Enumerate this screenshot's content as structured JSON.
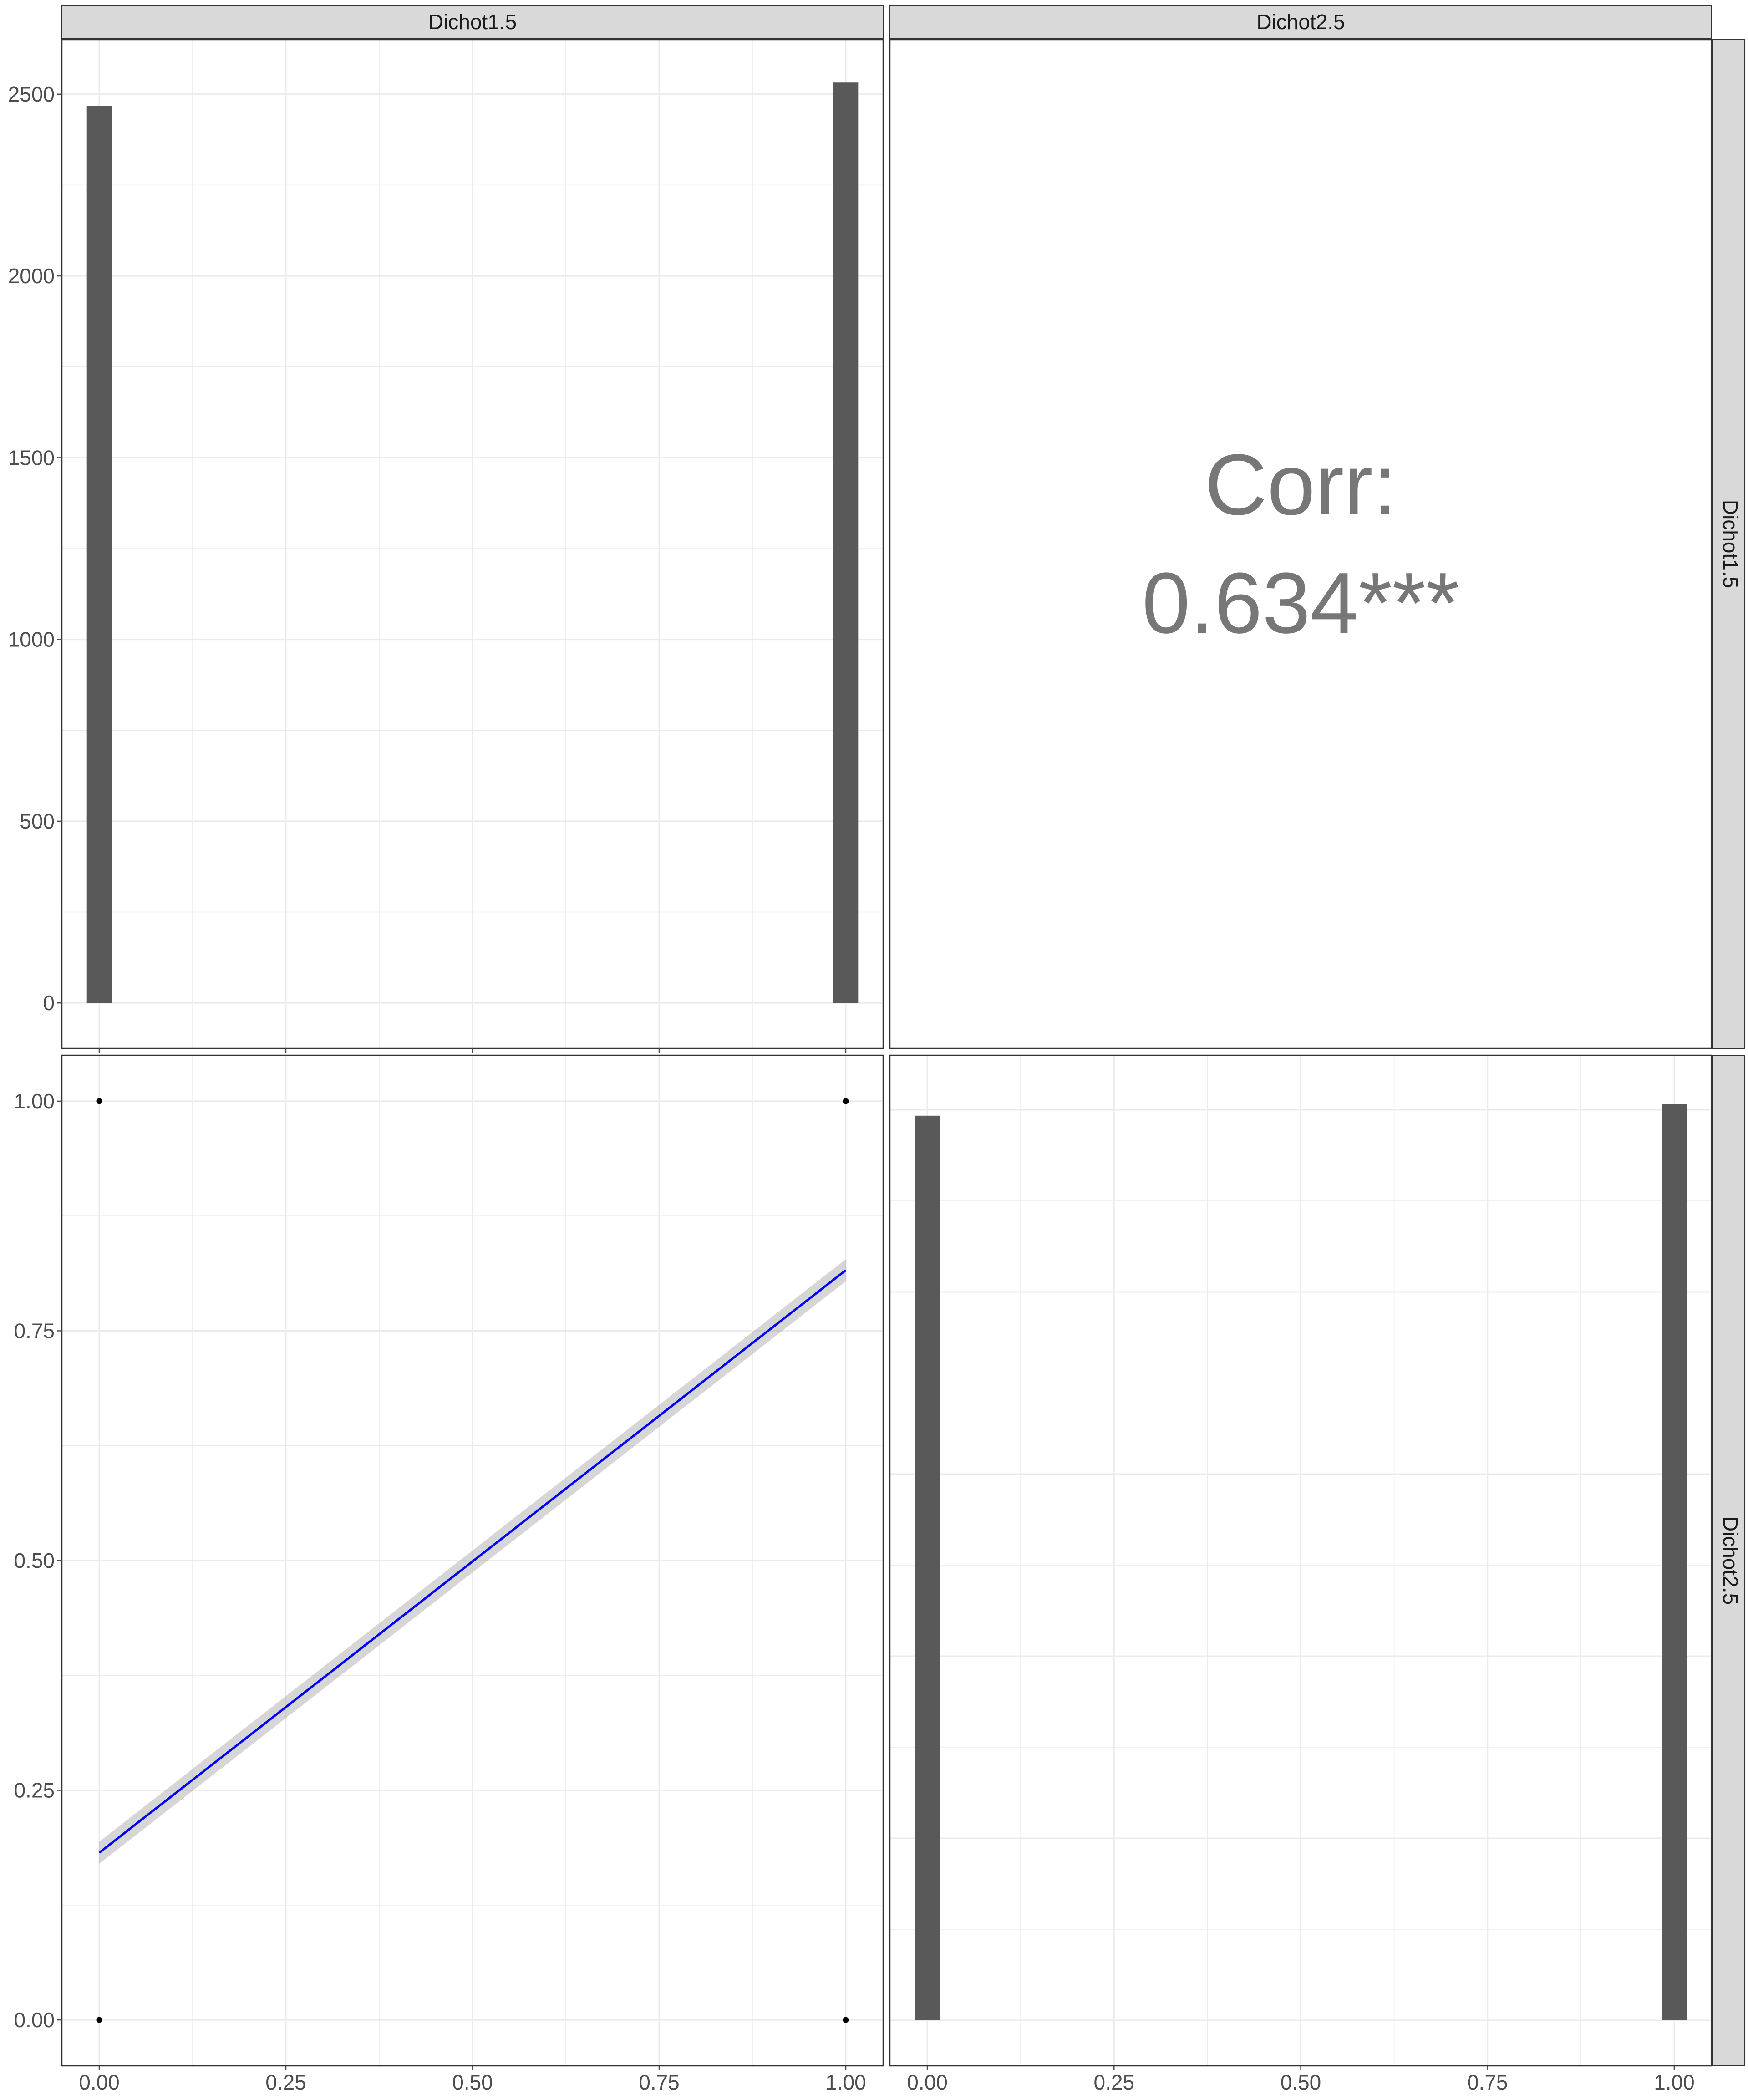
{
  "colors": {
    "bar": "#595959",
    "strip_fill": "#d9d9d9",
    "strip_text": "#1a1a1a",
    "grid": "#ebebeb",
    "panel_border": "#333333",
    "axis_text": "#4d4d4d",
    "corr_text": "#777777",
    "fit_line": "#0000ff",
    "ci_band": "#999999",
    "point": "#000000"
  },
  "strips": {
    "top": [
      "Dichot1.5",
      "Dichot2.5"
    ],
    "right": [
      "Dichot1.5",
      "Dichot2.5"
    ]
  },
  "correlation": {
    "label": "Corr:",
    "value": "0.634***"
  },
  "chart_data": [
    {
      "type": "bar",
      "panel": "row1-col1",
      "variable": "Dichot1.5",
      "x": [
        0,
        1
      ],
      "values": [
        2468,
        2532
      ],
      "xlim": [
        -0.05,
        1.05
      ],
      "ylim": [
        -125,
        2650
      ],
      "y_ticks": [
        "0",
        "500",
        "1000",
        "1500",
        "2000",
        "2500"
      ],
      "x_ticks": []
    },
    {
      "type": "text",
      "panel": "row1-col2",
      "text": [
        "Corr:",
        "0.634***"
      ]
    },
    {
      "type": "scatter",
      "panel": "row2-col1",
      "x_variable": "Dichot1.5",
      "y_variable": "Dichot2.5",
      "points": [
        [
          0,
          0
        ],
        [
          0,
          1
        ],
        [
          1,
          0
        ],
        [
          1,
          1
        ]
      ],
      "fit": {
        "method": "lm",
        "x": [
          0,
          1
        ],
        "y": [
          0.182,
          0.816
        ],
        "se_band_halfwidth": 0.012
      },
      "xlim": [
        -0.05,
        1.05
      ],
      "ylim": [
        -0.05,
        1.05
      ],
      "x_ticks": [
        "0.00",
        "0.25",
        "0.50",
        "0.75",
        "1.00"
      ],
      "y_ticks": [
        "0.00",
        "0.25",
        "0.50",
        "0.75",
        "1.00"
      ]
    },
    {
      "type": "bar",
      "panel": "row2-col2",
      "variable": "Dichot2.5",
      "x": [
        0,
        1
      ],
      "values": [
        2484,
        2516
      ],
      "xlim": [
        -0.05,
        1.05
      ],
      "ylim": [
        -125,
        2650
      ],
      "y_ticks": [],
      "x_ticks": [
        "0.00",
        "0.25",
        "0.50",
        "0.75",
        "1.00"
      ]
    }
  ]
}
